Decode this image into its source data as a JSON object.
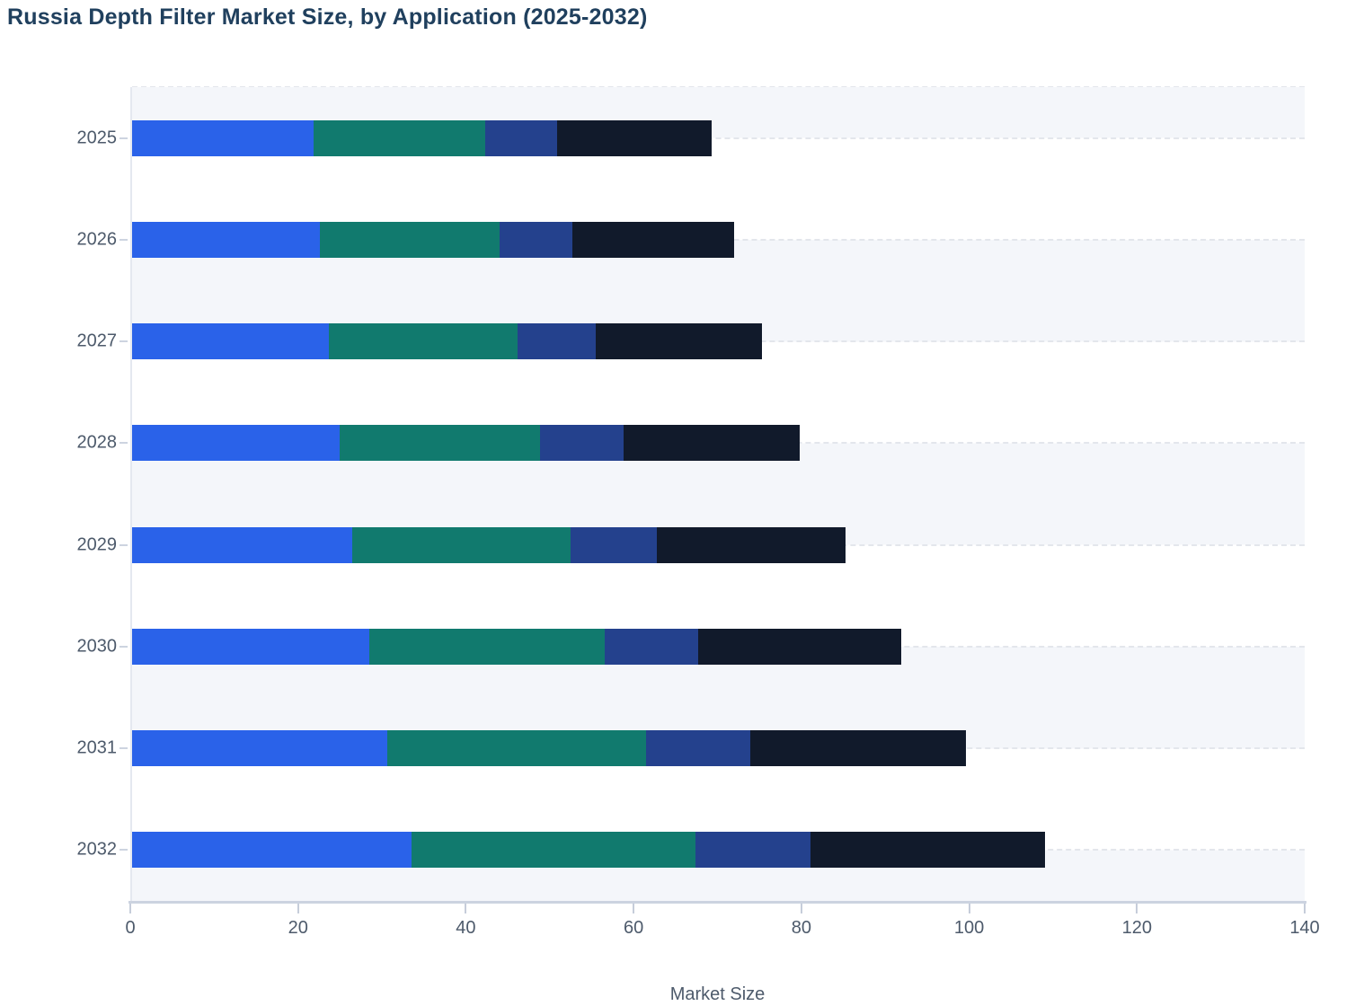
{
  "title": "Russia Depth Filter Market Size, by Application (2025-2032)",
  "x_axis": {
    "label": "Market Size",
    "ticks": [
      "0",
      "20",
      "40",
      "60",
      "80",
      "100",
      "120",
      "140"
    ],
    "min": 0,
    "max": 140
  },
  "y_axis": {
    "categories": [
      "2025",
      "2026",
      "2027",
      "2028",
      "2029",
      "2030",
      "2031",
      "2032"
    ]
  },
  "colors": {
    "series_blue": "#2a62e9",
    "series_teal": "#117a6e",
    "series_navy": "#24418d",
    "series_dark_navy": "#111a2b",
    "title_text": "#20405e",
    "axis_text": "#4d5a6b",
    "stripe_band": "#f4f6fa",
    "gridline": "#e3e6ec"
  },
  "chart_data": {
    "type": "bar",
    "orientation": "horizontal",
    "stacked": true,
    "title": "Russia Depth Filter Market Size, by Application (2025-2032)",
    "xlabel": "Market Size",
    "ylabel": "",
    "xlim": [
      0,
      140
    ],
    "grid": "dashed horizontal lines at each category center; alternating row bands",
    "legend": "not visible (cut off below chart)",
    "categories": [
      "2025",
      "2026",
      "2027",
      "2028",
      "2029",
      "2030",
      "2031",
      "2032"
    ],
    "series": [
      {
        "name": "blue-segment",
        "color": "#2a62e9",
        "values": [
          21.7,
          22.4,
          23.5,
          24.8,
          26.3,
          28.3,
          30.5,
          33.4
        ]
      },
      {
        "name": "teal-segment",
        "color": "#117a6e",
        "values": [
          20.5,
          21.5,
          22.5,
          23.9,
          26.1,
          28.1,
          30.9,
          33.9
        ]
      },
      {
        "name": "navy-segment",
        "color": "#24418d",
        "values": [
          8.5,
          8.7,
          9.4,
          10.0,
          10.3,
          11.2,
          12.4,
          13.7
        ]
      },
      {
        "name": "dark-navy-segment",
        "color": "#111a2b",
        "values": [
          18.5,
          19.3,
          19.8,
          21.0,
          22.5,
          24.2,
          25.8,
          28.0
        ]
      }
    ],
    "totals": [
      69.2,
      71.9,
      75.2,
      79.7,
      85.2,
      91.8,
      99.6,
      109.0
    ]
  }
}
